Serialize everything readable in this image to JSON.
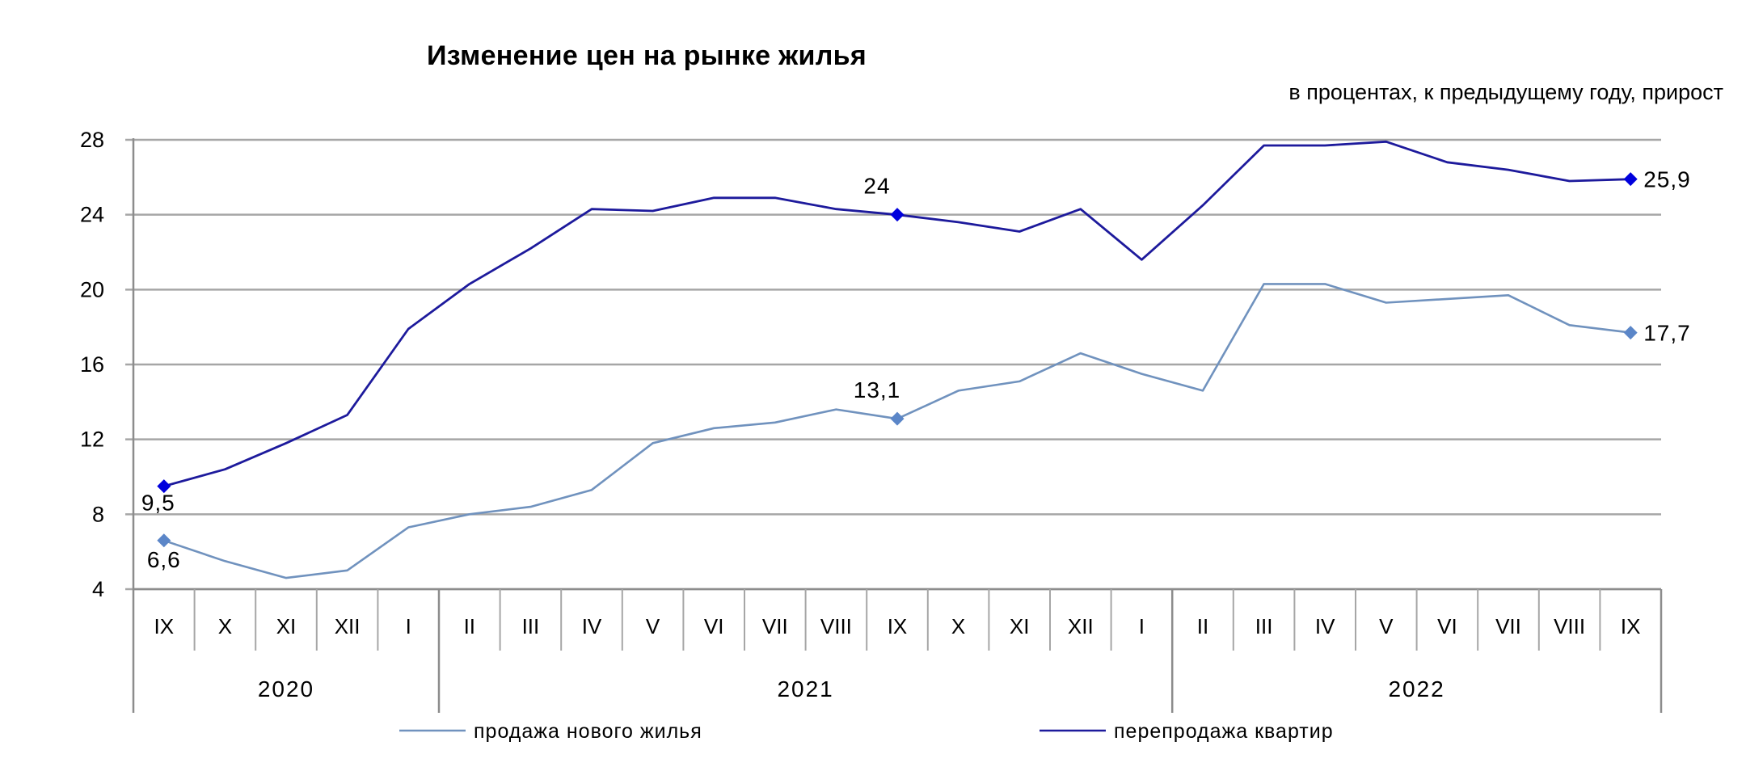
{
  "chart_data": {
    "type": "line",
    "title": "Изменение цен на рынке жилья",
    "subtitle": "в процентах,  к предыдущему году, прирост",
    "xlabel": "",
    "ylabel": "",
    "ylim": [
      4,
      28
    ],
    "yticks": [
      "4",
      "8",
      "12",
      "16",
      "20",
      "24",
      "28"
    ],
    "grid": true,
    "legend_position": "bottom",
    "categories": [
      "IX",
      "X",
      "XI",
      "XII",
      "I",
      "II",
      "III",
      "IV",
      "V",
      "VI",
      "VII",
      "VIII",
      "IX",
      "X",
      "XI",
      "XII",
      "I",
      "II",
      "III",
      "IV",
      "V",
      "VI",
      "VII",
      "VIII",
      "IX"
    ],
    "years": [
      {
        "label": "2020",
        "start": 0,
        "end": 4
      },
      {
        "label": "2021",
        "start": 5,
        "end": 16
      },
      {
        "label": "2022",
        "start": 17,
        "end": 24
      }
    ],
    "series": [
      {
        "name": "продажа нового жилья",
        "color": "#7092be",
        "marker_color": "#5b86c8",
        "values": [
          6.6,
          5.5,
          4.6,
          5.0,
          7.3,
          8.0,
          8.4,
          9.3,
          11.8,
          12.6,
          12.9,
          13.6,
          13.1,
          14.6,
          15.1,
          16.6,
          15.5,
          14.6,
          20.3,
          20.3,
          19.3,
          19.5,
          19.7,
          18.1,
          17.7
        ],
        "labels": [
          {
            "index": 0,
            "text": "6,6"
          },
          {
            "index": 12,
            "text": "13,1"
          },
          {
            "index": 24,
            "text": "17,7"
          }
        ]
      },
      {
        "name": "перепродажа квартир",
        "color": "#1d1a9c",
        "marker_color": "#0000dd",
        "values": [
          9.5,
          10.4,
          11.8,
          13.3,
          17.9,
          20.3,
          22.2,
          24.3,
          24.2,
          24.9,
          24.9,
          24.3,
          24.0,
          23.6,
          23.1,
          24.3,
          21.6,
          24.5,
          27.7,
          27.7,
          27.9,
          26.8,
          26.4,
          25.8,
          25.9
        ],
        "labels": [
          {
            "index": 0,
            "text": "9,5"
          },
          {
            "index": 12,
            "text": "24"
          },
          {
            "index": 24,
            "text": "25,9"
          }
        ]
      }
    ]
  }
}
